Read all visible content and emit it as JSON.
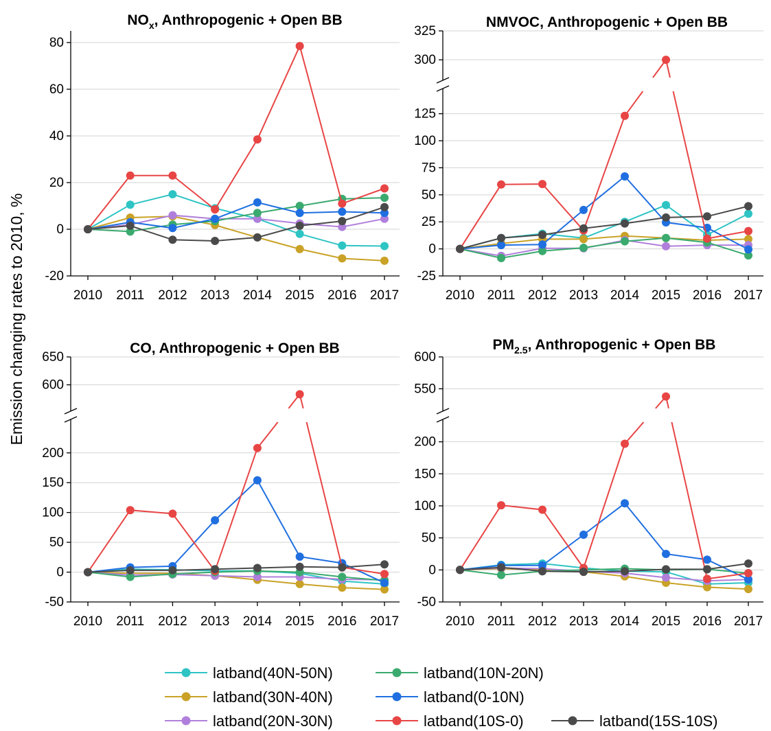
{
  "ylabel": "Emission changing rates to 2010, %",
  "legend": {
    "columns": 3
  },
  "chart_data": [
    {
      "type": "line",
      "title_main": "NO",
      "title_sub": "x",
      "title_rest": ", Anthropogenic + Open BB",
      "x": [
        "2010",
        "2011",
        "2012",
        "2013",
        "2014",
        "2015",
        "2016",
        "2017"
      ],
      "ylim": [
        -20,
        85
      ],
      "yticks": [
        -20,
        0,
        20,
        40,
        60,
        80
      ],
      "series": [
        {
          "name": "latband(40N-50N)",
          "color": "#2ec4c4",
          "values": [
            0,
            10.5,
            15,
            9,
            4.5,
            -2,
            -7,
            -7.2
          ]
        },
        {
          "name": "latband(30N-40N)",
          "color": "#c9a227",
          "values": [
            0,
            5,
            5.5,
            1.8,
            -3.5,
            -8.5,
            -12.5,
            -13.5
          ]
        },
        {
          "name": "latband(20N-30N)",
          "color": "#b07fdb",
          "values": [
            0,
            2,
            6,
            4.5,
            4.5,
            2.5,
            1,
            4.5
          ]
        },
        {
          "name": "latband(10N-20N)",
          "color": "#3aaa6e",
          "values": [
            0,
            -1,
            2,
            3.5,
            7,
            10,
            13,
            13.5
          ]
        },
        {
          "name": "latband(0-10N)",
          "color": "#1f6fe0",
          "values": [
            0,
            3,
            0.5,
            4.5,
            11.5,
            7,
            7.5,
            7
          ]
        },
        {
          "name": "latband(10S-0)",
          "color": "#e84545",
          "values": [
            0,
            23,
            23,
            8.5,
            38.5,
            78.5,
            11,
            17.5
          ]
        },
        {
          "name": "latband(15S-10S)",
          "color": "#4a4a4a",
          "values": [
            0,
            1.5,
            -4.5,
            -5,
            -3.5,
            1.5,
            3.5,
            9.5
          ]
        }
      ]
    },
    {
      "type": "line",
      "title_main": "NMVOC, Anthropogenic + Open BB",
      "title_sub": "",
      "title_rest": "",
      "x": [
        "2010",
        "2011",
        "2012",
        "2013",
        "2014",
        "2015",
        "2016",
        "2017"
      ],
      "ylim_lower": [
        -25,
        140
      ],
      "ylim_upper": [
        290,
        325
      ],
      "yticks_lower": [
        -25,
        0,
        25,
        50,
        75,
        100,
        125
      ],
      "yticks_upper": [
        300,
        325
      ],
      "series": [
        {
          "name": "latband(40N-50N)",
          "color": "#2ec4c4",
          "values": [
            0,
            10,
            14,
            10,
            25,
            40.5,
            13,
            32.5
          ]
        },
        {
          "name": "latband(30N-40N)",
          "color": "#c9a227",
          "values": [
            0,
            5,
            9,
            9,
            12,
            10,
            8,
            9
          ]
        },
        {
          "name": "latband(20N-30N)",
          "color": "#b07fdb",
          "values": [
            0,
            -6.5,
            0.5,
            0.5,
            8,
            2.5,
            3.5,
            3.5
          ]
        },
        {
          "name": "latband(10N-20N)",
          "color": "#3aaa6e",
          "values": [
            0,
            -8.5,
            -2,
            1,
            7,
            10,
            6,
            -6
          ]
        },
        {
          "name": "latband(0-10N)",
          "color": "#1f6fe0",
          "values": [
            0,
            3.5,
            4,
            36,
            67,
            24.5,
            19.5,
            -0.5
          ]
        },
        {
          "name": "latband(10S-0)",
          "color": "#e84545",
          "values": [
            0,
            59.5,
            60,
            17,
            123,
            300,
            9.5,
            16.5
          ]
        },
        {
          "name": "latband(15S-10S)",
          "color": "#4a4a4a",
          "values": [
            0,
            10,
            13,
            19,
            23.5,
            29,
            30,
            39.5
          ]
        }
      ]
    },
    {
      "type": "line",
      "title_main": "CO, Anthropogenic + Open BB",
      "title_sub": "",
      "title_rest": "",
      "x": [
        "2010",
        "2011",
        "2012",
        "2013",
        "2014",
        "2015",
        "2016",
        "2017"
      ],
      "ylim_lower": [
        -50,
        240
      ],
      "ylim_upper": [
        570,
        650
      ],
      "yticks_lower": [
        -50,
        0,
        50,
        100,
        150,
        200
      ],
      "yticks_upper": [
        600,
        650
      ],
      "series": [
        {
          "name": "latband(40N-50N)",
          "color": "#2ec4c4",
          "values": [
            0,
            5,
            4,
            2,
            2,
            -2,
            -15,
            -20
          ]
        },
        {
          "name": "latband(30N-40N)",
          "color": "#c9a227",
          "values": [
            0,
            -2,
            -2,
            -6,
            -13,
            -20,
            -26,
            -29
          ]
        },
        {
          "name": "latband(20N-30N)",
          "color": "#b07fdb",
          "values": [
            0,
            -5,
            -4,
            -6,
            -8,
            -8,
            -12,
            -13
          ]
        },
        {
          "name": "latband(10N-20N)",
          "color": "#3aaa6e",
          "values": [
            0,
            -8,
            -3,
            0,
            2,
            0,
            -8,
            -14
          ]
        },
        {
          "name": "latband(0-10N)",
          "color": "#1f6fe0",
          "values": [
            0,
            8,
            10,
            87,
            154,
            26,
            15,
            -18
          ]
        },
        {
          "name": "latband(10S-0)",
          "color": "#e84545",
          "values": [
            0,
            104,
            98,
            2,
            208,
            583,
            8,
            -3
          ]
        },
        {
          "name": "latband(15S-10S)",
          "color": "#4a4a4a",
          "values": [
            0,
            3,
            3,
            5,
            7,
            9,
            8,
            13
          ]
        }
      ]
    },
    {
      "type": "line",
      "title_main": "PM",
      "title_sub": "2.5",
      "title_rest": ", Anthropogenic + Open BB",
      "x": [
        "2010",
        "2011",
        "2012",
        "2013",
        "2014",
        "2015",
        "2016",
        "2017"
      ],
      "ylim_lower": [
        -50,
        220
      ],
      "ylim_upper": [
        530,
        600
      ],
      "yticks_lower": [
        -50,
        0,
        50,
        100,
        150,
        200
      ],
      "yticks_upper": [
        550,
        600
      ],
      "series": [
        {
          "name": "latband(40N-50N)",
          "color": "#2ec4c4",
          "values": [
            0,
            8,
            10,
            3,
            -2,
            -3,
            -22,
            -20
          ]
        },
        {
          "name": "latband(30N-40N)",
          "color": "#c9a227",
          "values": [
            0,
            2,
            0,
            -3,
            -10,
            -20,
            -27,
            -30
          ]
        },
        {
          "name": "latband(20N-30N)",
          "color": "#b07fdb",
          "values": [
            0,
            3,
            2,
            -2,
            -5,
            -12,
            -17,
            -15
          ]
        },
        {
          "name": "latband(10N-20N)",
          "color": "#3aaa6e",
          "values": [
            0,
            -8,
            -2,
            0,
            2,
            0,
            1,
            -5
          ]
        },
        {
          "name": "latband(0-10N)",
          "color": "#1f6fe0",
          "values": [
            0,
            7,
            7,
            55,
            104,
            25,
            16,
            -15
          ]
        },
        {
          "name": "latband(10S-0)",
          "color": "#e84545",
          "values": [
            0,
            101,
            94,
            3,
            197,
            538,
            -14,
            -5
          ]
        },
        {
          "name": "latband(15S-10S)",
          "color": "#4a4a4a",
          "values": [
            0,
            4,
            -2,
            -3,
            -2,
            1,
            1,
            10
          ]
        }
      ]
    }
  ]
}
